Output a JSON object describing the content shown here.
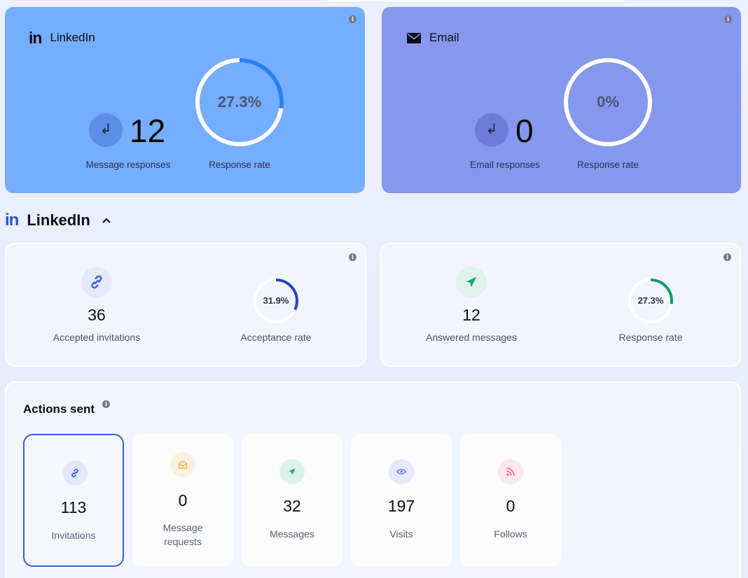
{
  "summary": {
    "linkedin": {
      "title": "LinkedIn",
      "count": "12",
      "count_label": "Message responses",
      "rate": "27.3%",
      "rate_value": 27.3,
      "rate_label": "Response rate",
      "ring_color": "#2b7ef0"
    },
    "email": {
      "title": "Email",
      "count": "0",
      "count_label": "Email responses",
      "rate": "0%",
      "rate_value": 0,
      "rate_label": "Response rate"
    }
  },
  "section": {
    "logo": "in",
    "title": "LinkedIn"
  },
  "metrics": {
    "invitations": {
      "icon": "link-icon",
      "count": "36",
      "count_label": "Accepted invitations",
      "rate": "31.9%",
      "rate_value": 31.9,
      "rate_label": "Acceptance rate",
      "ring_color": "#2446b8"
    },
    "messages": {
      "icon": "paper-plane-icon",
      "count": "12",
      "count_label": "Answered messages",
      "rate": "27.3%",
      "rate_value": 27.3,
      "rate_label": "Response rate",
      "ring_color": "#0f9a6e"
    }
  },
  "actions": {
    "title": "Actions sent",
    "items": [
      {
        "label": "Invitations",
        "value": "113",
        "icon": "link-icon",
        "color": "#3a5ed3"
      },
      {
        "label": "Message requests",
        "value": "0",
        "icon": "envelope-open-icon",
        "color": "#e8a63a"
      },
      {
        "label": "Messages",
        "value": "32",
        "icon": "paper-plane-icon",
        "color": "#16a775"
      },
      {
        "label": "Visits",
        "value": "197",
        "icon": "eye-icon",
        "color": "#6677d8"
      },
      {
        "label": "Follows",
        "value": "0",
        "icon": "rss-icon",
        "color": "#e8638b"
      }
    ]
  }
}
